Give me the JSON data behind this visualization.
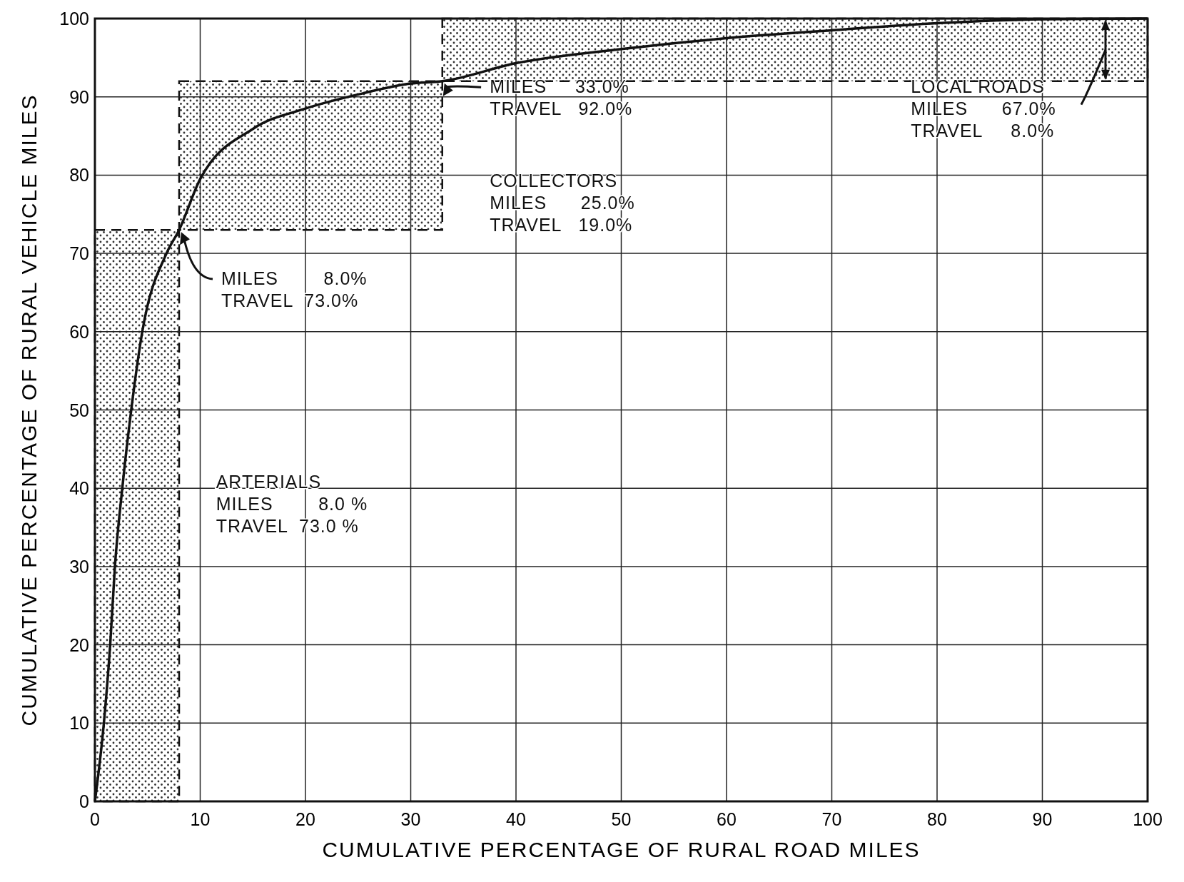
{
  "chart_data": {
    "type": "line",
    "xlabel": "CUMULATIVE PERCENTAGE OF RURAL ROAD MILES",
    "ylabel": "CUMULATIVE PERCENTAGE OF RURAL VEHICLE MILES",
    "xlim": [
      0,
      100
    ],
    "ylim": [
      0,
      100
    ],
    "xticks": [
      0,
      10,
      20,
      30,
      40,
      50,
      60,
      70,
      80,
      90,
      100
    ],
    "yticks": [
      0,
      10,
      20,
      30,
      40,
      50,
      60,
      70,
      80,
      90,
      100
    ],
    "grid": true,
    "marker": "none",
    "line_style": "solid",
    "series": [
      {
        "color": "#111111",
        "x": [
          0,
          0.85,
          1.45,
          1.9,
          2.6,
          3.45,
          4.5,
          6.8,
          8,
          10,
          15,
          20,
          25,
          30,
          33,
          40,
          50,
          60,
          70,
          80,
          90,
          100
        ],
        "values": [
          0,
          10,
          20,
          30,
          40,
          50,
          60,
          70,
          73,
          79.5,
          85.9,
          88.5,
          90.3,
          91.7,
          92,
          94.3,
          96.1,
          97.5,
          98.5,
          99.4,
          99.9,
          100
        ]
      }
    ],
    "bands": [
      {
        "axis": "x",
        "from": 0,
        "to": 8
      },
      {
        "axis": "x",
        "from": 8,
        "to": 33
      },
      {
        "axis": "x",
        "from": 33,
        "to": 100
      }
    ],
    "annotations": [
      "ARTERIALS\nMILES        8.0 %\nTRAVEL  73.0 %",
      "COLLECTORS\nMILES      25.0%\nTRAVEL   19.0%",
      "LOCAL ROADS\nMILES      67.0%\nTRAVEL     8.0%",
      "MILES        8.0%\nTRAVEL  73.0%",
      "MILES     33.0%\nTRAVEL   92.0%"
    ]
  }
}
